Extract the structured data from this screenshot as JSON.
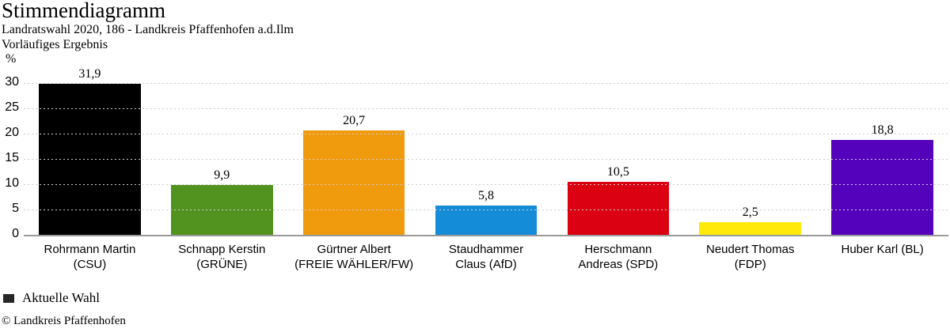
{
  "header": {
    "title": "Stimmendiagramm",
    "subtitle1": "Landratswahl 2020, 186 - Landkreis Pfaffenhofen a.d.Ilm",
    "subtitle2": "Vorläufiges Ergebnis"
  },
  "chart_data": {
    "type": "bar",
    "title": "Stimmendiagramm",
    "subtitle": "Landratswahl 2020, 186 - Landkreis Pfaffenhofen a.d.Ilm — Vorläufiges Ergebnis",
    "ylabel": "%",
    "categories": [
      "Rohrmann Martin (CSU)",
      "Schnapp Kerstin (GRÜNE)",
      "Gürtner Albert (FREIE WÄHLER/FW)",
      "Staudhammer Claus (AfD)",
      "Herschmann Andreas (SPD)",
      "Neudert Thomas (FDP)",
      "Huber Karl (BL)"
    ],
    "category_lines": [
      [
        "Rohrmann Martin",
        "(CSU)"
      ],
      [
        "Schnapp Kerstin",
        "(GRÜNE)"
      ],
      [
        "Gürtner Albert",
        "(FREIE WÄHLER/FW)"
      ],
      [
        "Staudhammer",
        "Claus (AfD)"
      ],
      [
        "Herschmann",
        "Andreas (SPD)"
      ],
      [
        "Neudert Thomas",
        "(FDP)"
      ],
      [
        "Huber Karl (BL)"
      ]
    ],
    "values": [
      31.9,
      9.9,
      20.7,
      5.8,
      10.5,
      2.5,
      18.8
    ],
    "value_labels": [
      "31,9",
      "9,9",
      "20,7",
      "5,8",
      "10,5",
      "2,5",
      "18,8"
    ],
    "bar_colors": [
      "#000000",
      "#529320",
      "#f09a0e",
      "#148cd8",
      "#db0012",
      "#ffe90a",
      "#5502bd"
    ],
    "yticks": [
      0,
      5,
      10,
      15,
      20,
      25,
      30
    ],
    "ylim": [
      0,
      33.1
    ],
    "grid": "horizontal-dashed",
    "grid_color": "#cdcdcd",
    "axis_color": "#9a9a9a",
    "legend_position": "bottom-left"
  },
  "legend": {
    "label": "Aktuelle Wahl",
    "swatch_color": "#262626"
  },
  "footer": {
    "copyright": "© Landkreis Pfaffenhofen"
  }
}
